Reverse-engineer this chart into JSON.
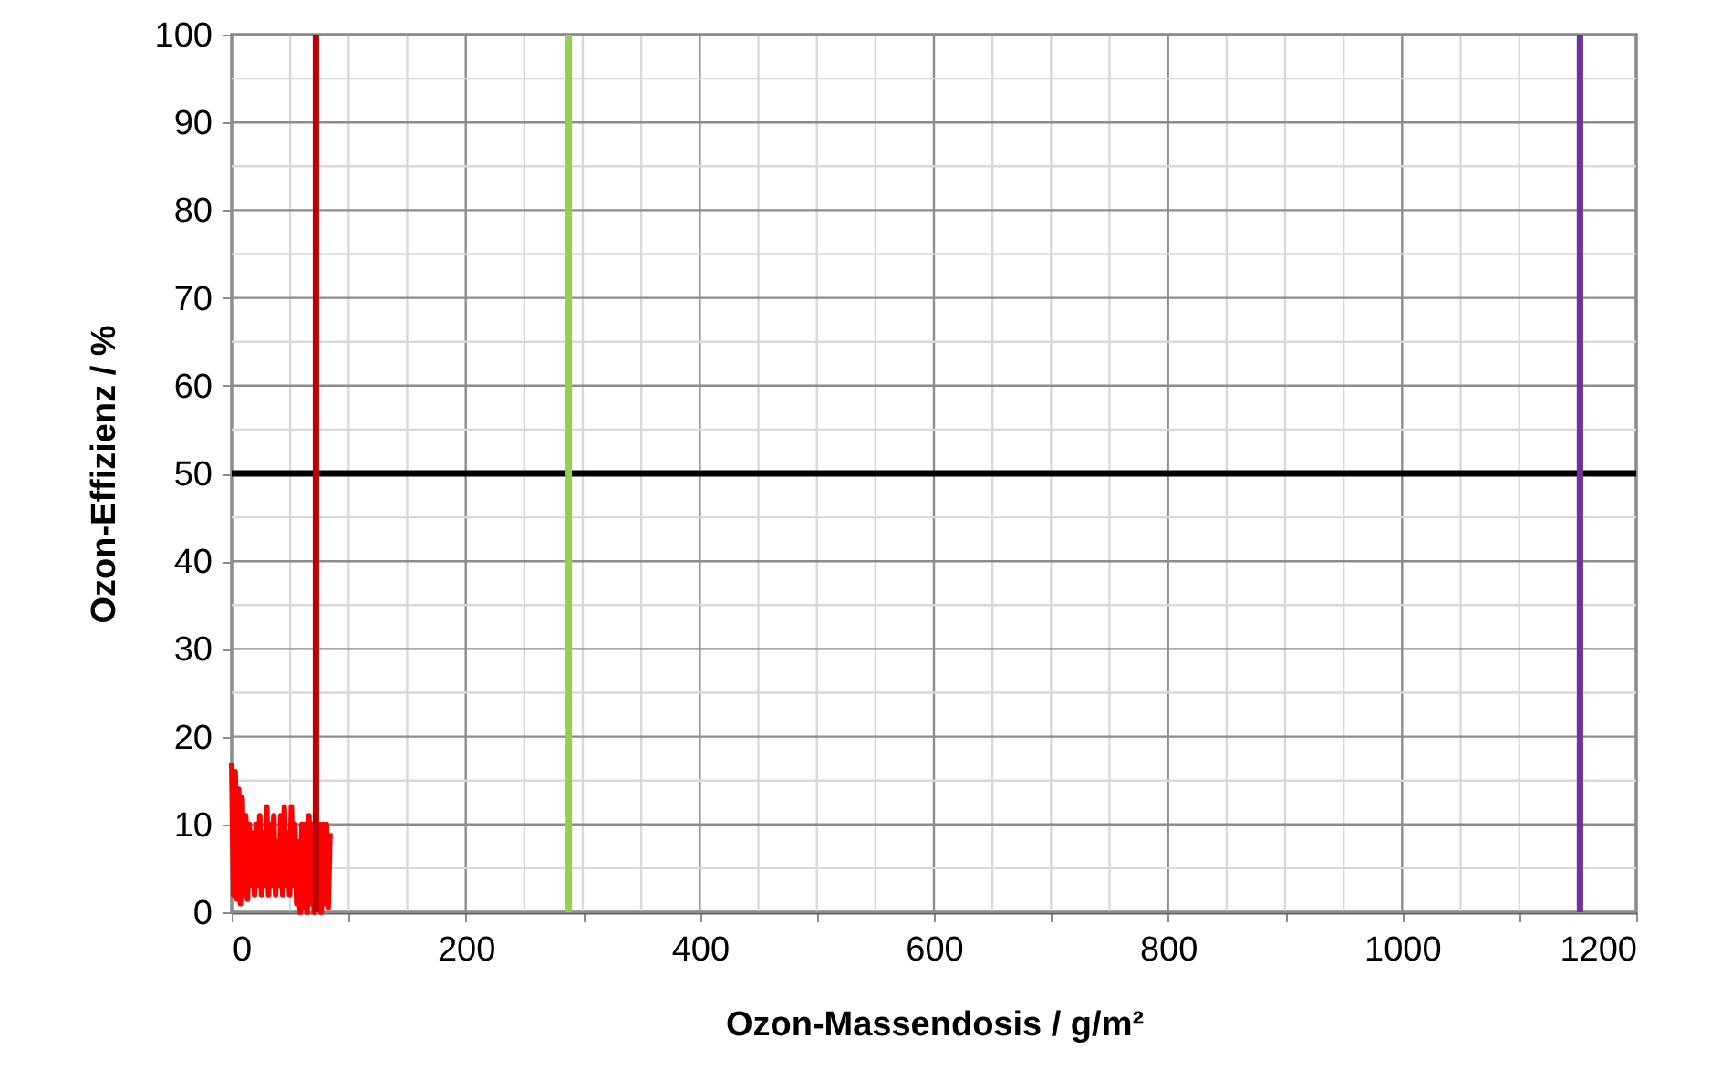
{
  "chart_data": {
    "type": "line",
    "xlabel": "Ozon-Massendosis  / g/m²",
    "ylabel": "Ozon-Effizienz / %",
    "x": [
      0,
      1.5,
      3,
      4.5,
      6,
      7.5,
      9,
      10.5,
      12,
      13.5,
      15,
      16.5,
      18,
      19.5,
      21,
      22.5,
      24,
      25.5,
      27,
      28.5,
      30,
      31.5,
      33,
      34.5,
      36,
      37.5,
      39,
      40.5,
      42,
      43.5,
      45,
      46.5,
      48,
      49.5,
      51,
      52.5,
      54,
      55.5,
      57,
      58.5,
      60,
      61.5,
      63,
      64.5,
      66,
      67.5,
      69,
      70.5,
      72,
      73.5,
      75,
      76.5,
      78,
      79.5,
      81,
      82.5,
      84
    ],
    "series": [
      {
        "color": "#ff0000",
        "values": [
          17,
          2,
          16,
          1.5,
          14,
          1,
          13,
          2,
          11,
          1.5,
          10,
          3,
          9,
          2,
          10,
          3,
          11,
          2,
          9,
          3,
          12,
          2,
          10,
          3,
          11,
          2,
          8,
          3,
          11,
          2,
          12,
          3,
          9,
          2,
          12,
          3,
          10,
          1,
          8,
          0,
          10,
          0.5,
          10,
          0,
          11,
          1,
          10,
          0,
          10,
          0.5,
          10,
          0,
          10,
          1,
          10,
          0.5,
          9
        ]
      }
    ],
    "xlim": [
      0,
      1200
    ],
    "xticks": [
      0,
      {
        "value": 50,
        "label": null
      },
      {
        "value": 100,
        "label": null
      },
      {
        "value": 150,
        "label": null
      },
      200,
      {
        "value": 250,
        "label": null
      },
      {
        "value": 300,
        "label": null
      },
      {
        "value": 350,
        "label": null
      },
      400,
      {
        "value": 450,
        "label": null
      },
      {
        "value": 500,
        "label": null
      },
      {
        "value": 550,
        "label": null
      },
      600,
      {
        "value": 650,
        "label": null
      },
      {
        "value": 700,
        "label": null
      },
      {
        "value": 750,
        "label": null
      },
      800,
      {
        "value": 850,
        "label": null
      },
      {
        "value": 900,
        "label": null
      },
      {
        "value": 950,
        "label": null
      },
      1000,
      {
        "value": 1050,
        "label": null
      },
      {
        "value": 1100,
        "label": null
      },
      {
        "value": 1150,
        "label": null
      },
      1200
    ],
    "ylim": [
      0,
      100
    ],
    "yticks": [
      0,
      {
        "value": 5,
        "label": null
      },
      10,
      {
        "value": 15,
        "label": null
      },
      20,
      {
        "value": 25,
        "label": null
      },
      30,
      {
        "value": 35,
        "label": null
      },
      40,
      {
        "value": 45,
        "label": null
      },
      50,
      {
        "value": 55,
        "label": null
      },
      60,
      {
        "value": 65,
        "label": null
      },
      70,
      {
        "value": 75,
        "label": null
      },
      80,
      {
        "value": 85,
        "label": null
      },
      90,
      {
        "value": 95,
        "label": null
      },
      100
    ],
    "grid": true,
    "marker": "none",
    "line_style": "solid",
    "ref_lines": [
      {
        "axis": "y",
        "value": 50,
        "color": "#000000"
      },
      {
        "axis": "x",
        "value": 72,
        "color": "#c00000"
      },
      {
        "axis": "x",
        "value": 288,
        "color": "#92d050"
      },
      {
        "axis": "x",
        "value": 1152,
        "color": "#7030a0"
      }
    ]
  }
}
